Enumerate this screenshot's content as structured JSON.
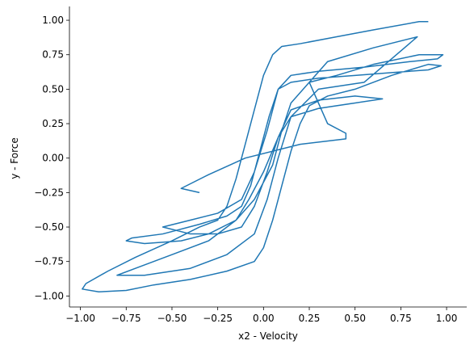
{
  "chart_data": {
    "type": "line",
    "x_label": "x2 - Velocity",
    "y_label": "y - Force",
    "color": "#1f77b4",
    "xlim": [
      -1.06,
      1.11
    ],
    "ylim": [
      -1.08,
      1.1
    ],
    "xticks": [
      {
        "value": -1,
        "label": "−1.00"
      },
      {
        "value": -0.75,
        "label": "−0.75"
      },
      {
        "value": -0.5,
        "label": "−0.50"
      },
      {
        "value": -0.25,
        "label": "−0.25"
      },
      {
        "value": 0,
        "label": "0.00"
      },
      {
        "value": 0.25,
        "label": "0.25"
      },
      {
        "value": 0.5,
        "label": "0.50"
      },
      {
        "value": 0.75,
        "label": "0.75"
      },
      {
        "value": 1,
        "label": "1.00"
      }
    ],
    "yticks": [
      {
        "value": -1,
        "label": "−1.00"
      },
      {
        "value": -0.75,
        "label": "−0.75"
      },
      {
        "value": -0.5,
        "label": "−0.50"
      },
      {
        "value": -0.25,
        "label": "−0.25"
      },
      {
        "value": 0,
        "label": "0.00"
      },
      {
        "value": 0.25,
        "label": "0.25"
      },
      {
        "value": 0.5,
        "label": "0.50"
      },
      {
        "value": 0.75,
        "label": "0.75"
      },
      {
        "value": 1,
        "label": "1.00"
      }
    ],
    "x": [
      0.9,
      0.85,
      0.6,
      0.4,
      0.2,
      0.1,
      0.05,
      0.0,
      -0.05,
      -0.1,
      -0.15,
      -0.2,
      -0.25,
      -0.35,
      -0.5,
      -0.7,
      -0.85,
      -0.97,
      -0.99,
      -0.9,
      -0.75,
      -0.6,
      -0.4,
      -0.2,
      -0.05,
      0.0,
      0.05,
      0.1,
      0.15,
      0.2,
      0.25,
      0.35,
      0.5,
      0.7,
      0.9,
      0.97,
      0.9,
      0.7,
      0.5,
      0.3,
      0.15,
      0.08,
      0.03,
      -0.02,
      -0.07,
      -0.12,
      -0.2,
      -0.35,
      -0.55,
      -0.72,
      -0.75,
      -0.65,
      -0.45,
      -0.3,
      -0.15,
      -0.05,
      0.05,
      0.1,
      0.15,
      0.25,
      0.4,
      0.6,
      0.85,
      0.98,
      0.95,
      0.8,
      0.55,
      0.3,
      0.15,
      0.08,
      0.02,
      -0.05,
      -0.12,
      -0.25,
      -0.4,
      -0.55,
      -0.4,
      -0.25,
      -0.12,
      -0.05,
      0.02,
      0.08,
      0.15,
      0.3,
      0.5,
      0.65,
      0.5,
      0.3,
      0.15,
      0.08,
      0.0,
      -0.08,
      -0.15,
      -0.3,
      -0.5,
      -0.7,
      -0.8,
      -0.65,
      -0.4,
      -0.2,
      -0.05,
      0.02,
      0.08,
      0.15,
      0.3,
      0.55,
      0.84,
      0.6,
      0.35,
      0.25,
      0.35,
      0.45,
      0.45,
      0.2,
      -0.1,
      -0.3,
      -0.45,
      -0.35
    ],
    "series": [
      {
        "values": [
          0.99,
          0.99,
          0.93,
          0.88,
          0.83,
          0.81,
          0.75,
          0.6,
          0.35,
          0.1,
          -0.15,
          -0.35,
          -0.45,
          -0.5,
          -0.6,
          -0.72,
          -0.82,
          -0.91,
          -0.95,
          -0.97,
          -0.96,
          -0.92,
          -0.88,
          -0.82,
          -0.75,
          -0.65,
          -0.45,
          -0.2,
          0.05,
          0.25,
          0.38,
          0.45,
          0.5,
          0.6,
          0.68,
          0.67,
          0.64,
          0.62,
          0.6,
          0.58,
          0.55,
          0.5,
          0.3,
          0.05,
          -0.2,
          -0.35,
          -0.42,
          -0.48,
          -0.55,
          -0.58,
          -0.6,
          -0.62,
          -0.6,
          -0.55,
          -0.45,
          -0.3,
          -0.05,
          0.2,
          0.4,
          0.55,
          0.6,
          0.68,
          0.75,
          0.75,
          0.72,
          0.7,
          0.66,
          0.63,
          0.6,
          0.5,
          0.2,
          -0.1,
          -0.3,
          -0.4,
          -0.45,
          -0.5,
          -0.55,
          -0.55,
          -0.5,
          -0.35,
          -0.1,
          0.15,
          0.35,
          0.42,
          0.45,
          0.43,
          0.4,
          0.36,
          0.3,
          0.15,
          -0.1,
          -0.3,
          -0.45,
          -0.6,
          -0.7,
          -0.8,
          -0.85,
          -0.85,
          -0.8,
          -0.7,
          -0.55,
          -0.3,
          0.0,
          0.3,
          0.5,
          0.55,
          0.88,
          0.8,
          0.7,
          0.55,
          0.25,
          0.18,
          0.14,
          0.1,
          0.0,
          -0.12,
          -0.22,
          -0.25
        ]
      }
    ]
  }
}
